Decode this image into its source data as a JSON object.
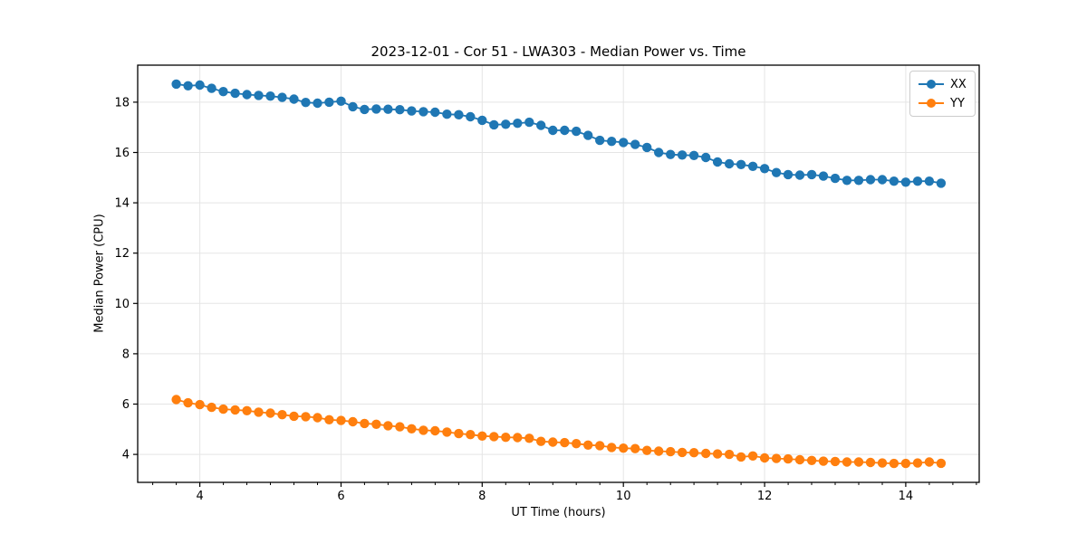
{
  "chart_data": {
    "type": "line",
    "title": "2023-12-01 - Cor 51 - LWA303 - Median Power vs. Time",
    "xlabel": "UT Time (hours)",
    "ylabel": "Median Power (CPU)",
    "xlim": [
      3.12,
      15.04
    ],
    "ylim": [
      2.89,
      19.47
    ],
    "xticks": [
      4,
      6,
      8,
      10,
      12,
      14
    ],
    "yticks": [
      4,
      6,
      8,
      10,
      12,
      14,
      16,
      18
    ],
    "x_minor_tick_step": 0.3333,
    "grid": true,
    "grid_color": "#e5e5e5",
    "marker": "circle",
    "legend_position": "upper right",
    "x": [
      3.667,
      3.833,
      4.0,
      4.167,
      4.333,
      4.5,
      4.667,
      4.833,
      5.0,
      5.167,
      5.333,
      5.5,
      5.667,
      5.833,
      6.0,
      6.167,
      6.333,
      6.5,
      6.667,
      6.833,
      7.0,
      7.167,
      7.333,
      7.5,
      7.667,
      7.833,
      8.0,
      8.167,
      8.333,
      8.5,
      8.667,
      8.833,
      9.0,
      9.167,
      9.333,
      9.5,
      9.667,
      9.833,
      10.0,
      10.167,
      10.333,
      10.5,
      10.667,
      10.833,
      11.0,
      11.167,
      11.333,
      11.5,
      11.667,
      11.833,
      12.0,
      12.167,
      12.333,
      12.5,
      12.667,
      12.833,
      13.0,
      13.167,
      13.333,
      13.5,
      13.667,
      13.833,
      14.0,
      14.167,
      14.333,
      14.5
    ],
    "series": [
      {
        "name": "XX",
        "color": "#1f77b4",
        "values": [
          18.72,
          18.65,
          18.68,
          18.55,
          18.42,
          18.35,
          18.3,
          18.27,
          18.24,
          18.19,
          18.12,
          17.99,
          17.96,
          18.0,
          18.04,
          17.82,
          17.71,
          17.73,
          17.72,
          17.7,
          17.65,
          17.62,
          17.6,
          17.52,
          17.5,
          17.42,
          17.28,
          17.1,
          17.12,
          17.16,
          17.2,
          17.08,
          16.88,
          16.88,
          16.84,
          16.68,
          16.48,
          16.44,
          16.4,
          16.32,
          16.2,
          16.0,
          15.92,
          15.9,
          15.88,
          15.8,
          15.62,
          15.55,
          15.52,
          15.45,
          15.36,
          15.2,
          15.12,
          15.1,
          15.12,
          15.06,
          14.97,
          14.89,
          14.89,
          14.92,
          14.92,
          14.86,
          14.82,
          14.86,
          14.86,
          14.78
        ]
      },
      {
        "name": "YY",
        "color": "#ff7f0e",
        "values": [
          6.18,
          6.05,
          5.98,
          5.87,
          5.8,
          5.77,
          5.74,
          5.68,
          5.64,
          5.58,
          5.52,
          5.5,
          5.46,
          5.38,
          5.35,
          5.3,
          5.23,
          5.2,
          5.14,
          5.1,
          5.02,
          4.96,
          4.94,
          4.89,
          4.83,
          4.79,
          4.73,
          4.71,
          4.68,
          4.67,
          4.64,
          4.52,
          4.49,
          4.47,
          4.43,
          4.37,
          4.35,
          4.28,
          4.25,
          4.23,
          4.16,
          4.13,
          4.11,
          4.08,
          4.07,
          4.04,
          4.02,
          4.0,
          3.9,
          3.94,
          3.86,
          3.84,
          3.82,
          3.79,
          3.76,
          3.73,
          3.72,
          3.7,
          3.7,
          3.68,
          3.66,
          3.64,
          3.64,
          3.66,
          3.7,
          3.65
        ]
      }
    ]
  }
}
